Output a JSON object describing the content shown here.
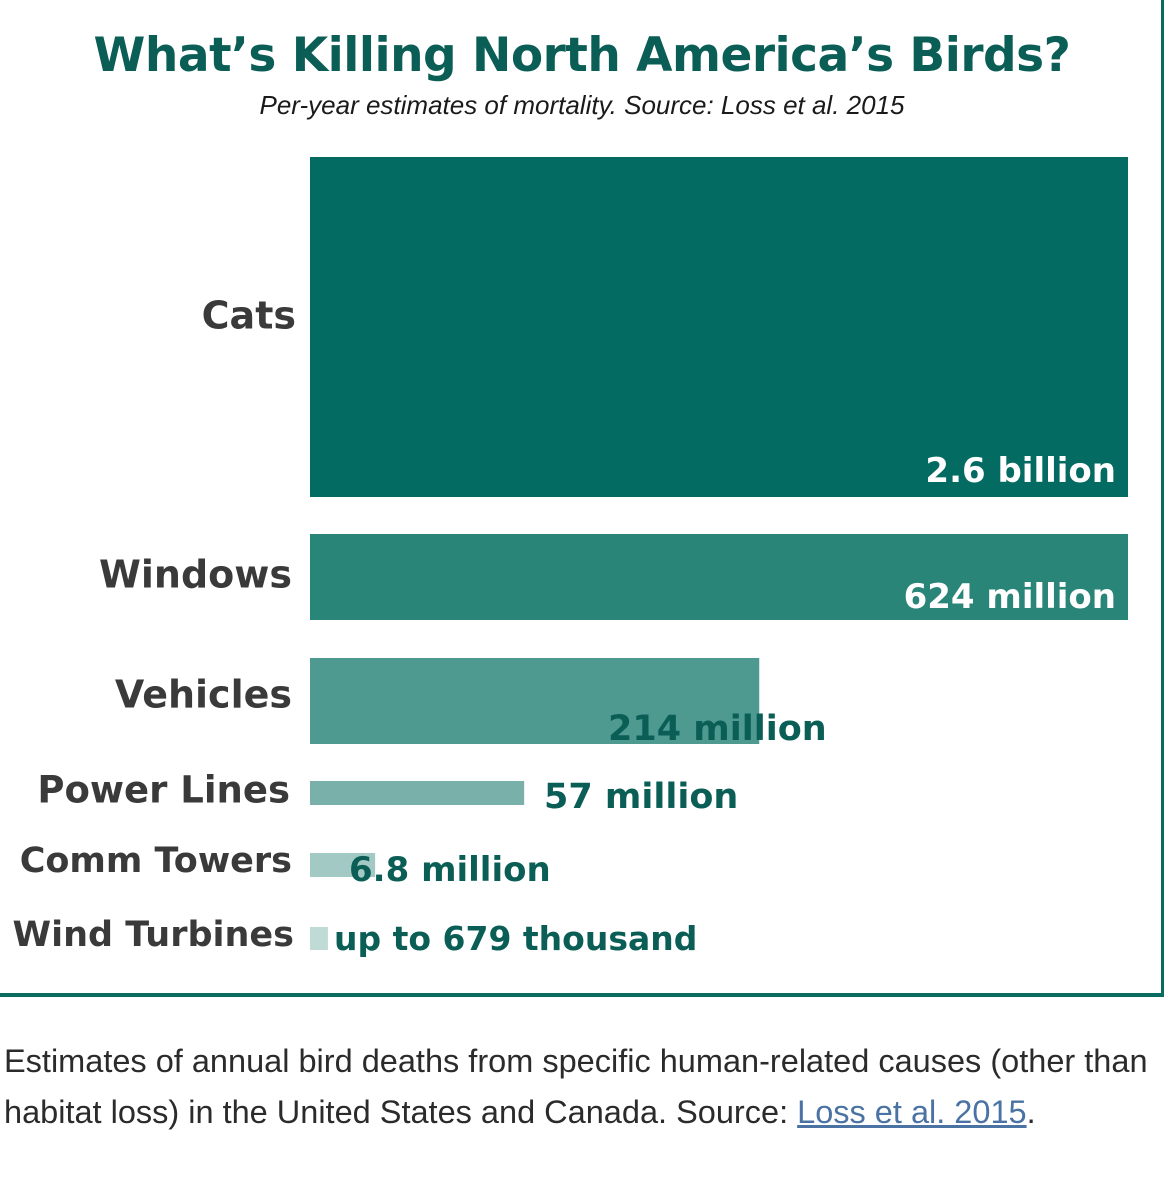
{
  "chart_data": {
    "type": "bar",
    "orientation": "horizontal",
    "title": "What’s Killing North America’s Birds?",
    "subtitle": "Per-year estimates of mortality. Source: Loss et al. 2015",
    "categories": [
      "Cats",
      "Windows",
      "Vehicles",
      "Power Lines",
      "Comm Towers",
      "Wind Turbines"
    ],
    "values": [
      2600000000,
      624000000,
      214000000,
      57000000,
      6800000,
      679000
    ],
    "value_labels": [
      "2.6 billion",
      "624 million",
      "214 million",
      "57 million",
      "6.8 million",
      "up to 679 thousand"
    ],
    "axis_note": "bar lengths not to a linear scale; Cats and Windows bars both span the full width",
    "colors": [
      "#036b61",
      "#2a8579",
      "#4e9a91",
      "#79b1aa",
      "#a2c9c4",
      "#c0dad6"
    ],
    "value_label_colors_inside": "#ffffff",
    "value_label_colors_outside": "#0a5e55",
    "grid": false,
    "legend": "none"
  },
  "caption": {
    "text": "Estimates of annual bird deaths from specific human-related causes (other than habitat loss) in the United States and Canada. Source: ",
    "link_text": "Loss et al. 2015",
    "end": "."
  }
}
